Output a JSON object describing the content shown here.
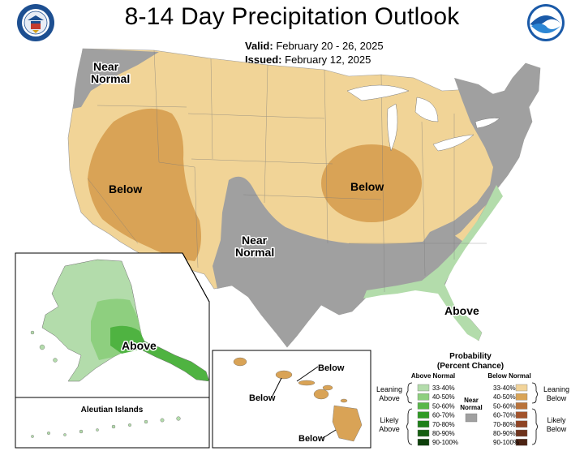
{
  "header": {
    "title": "8-14 Day Precipitation Outlook",
    "valid_label": "Valid:",
    "valid_value": "February 20 - 26, 2025",
    "issued_label": "Issued:",
    "issued_value": "February 12, 2025"
  },
  "logos": {
    "left": "department-of-commerce-seal",
    "right": "noaa-logo",
    "right_text": "NOAA"
  },
  "map_labels": {
    "near_normal_nw": "Near\nNormal",
    "below_west": "Below",
    "below_midwest": "Below",
    "near_normal_south": "Near\nNormal",
    "above_se": "Above",
    "above_alaska": "Above",
    "hawaii_below_1": "Below",
    "hawaii_below_2": "Below",
    "hawaii_below_3": "Below",
    "aleutian": "Aleutian Islands"
  },
  "legend": {
    "title_line1": "Probability",
    "title_line2": "(Percent Chance)",
    "above_header": "Above Normal",
    "below_header": "Below Normal",
    "near_label_1": "Near",
    "near_label_2": "Normal",
    "leaning_above_1": "Leaning",
    "leaning_above_2": "Above",
    "likely_above_1": "Likely",
    "likely_above_2": "Above",
    "leaning_below_1": "Leaning",
    "leaning_below_2": "Below",
    "likely_below_1": "Likely",
    "likely_below_2": "Below",
    "above_bins": [
      "33-40%",
      "40-50%",
      "50-60%",
      "60-70%",
      "70-80%",
      "80-90%",
      "90-100%"
    ],
    "below_bins": [
      "33-40%",
      "40-50%",
      "50-60%",
      "60-70%",
      "70-80%",
      "80-90%",
      "90-100%"
    ],
    "above_colors": [
      "#b3dcab",
      "#8ecf7f",
      "#59b74a",
      "#2f9a24",
      "#1f7f1a",
      "#165f12",
      "#0d3f0a"
    ],
    "below_colors": [
      "#f2d49a",
      "#d9a456",
      "#b9733b",
      "#a3532b",
      "#8f4424",
      "#6e331c",
      "#4c2313"
    ],
    "near_color": "#a0a0a0"
  },
  "colors": {
    "leaning_below": "#f1d497",
    "below_40_50": "#d9a356",
    "near_normal": "#a0a0a0",
    "above_33_40": "#b3dcab",
    "above_40_50": "#8ecf7f",
    "above_50_60": "#4fb341",
    "ocean": "#ffffff"
  }
}
